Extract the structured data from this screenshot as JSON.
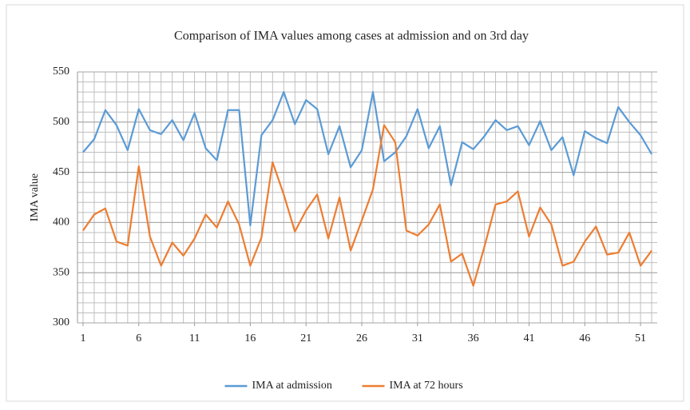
{
  "chart_data": {
    "type": "line",
    "title": "Comparison of IMA values among cases at admission and on 3rd day",
    "y_label": "IMA value",
    "x": [
      1,
      2,
      3,
      4,
      5,
      6,
      7,
      8,
      9,
      10,
      11,
      12,
      13,
      14,
      15,
      16,
      17,
      18,
      19,
      20,
      21,
      22,
      23,
      24,
      25,
      26,
      27,
      28,
      29,
      30,
      31,
      32,
      33,
      34,
      35,
      36,
      37,
      38,
      39,
      40,
      41,
      42,
      43,
      44,
      45,
      46,
      47,
      48,
      49,
      50,
      51,
      52
    ],
    "xlim": [
      0.5,
      52.5
    ],
    "xticks": [
      1,
      6,
      11,
      16,
      21,
      26,
      31,
      36,
      41,
      46,
      51
    ],
    "ylim": [
      300,
      550
    ],
    "yticks": [
      300,
      350,
      400,
      450,
      500,
      550
    ],
    "y_minor_step": 10,
    "grid": true,
    "legend": "bottom",
    "series": [
      {
        "name": "IMA at admission",
        "color": "#5b9bd5",
        "values": [
          470,
          483,
          512,
          497,
          472,
          513,
          492,
          488,
          502,
          482,
          509,
          474,
          462,
          512,
          512,
          397,
          487,
          502,
          530,
          498,
          522,
          513,
          468,
          496,
          455,
          472,
          530,
          461,
          470,
          486,
          513,
          474,
          496,
          437,
          480,
          473,
          486,
          502,
          492,
          496,
          477,
          501,
          472,
          485,
          447,
          491,
          484,
          479,
          515,
          500,
          487,
          468
        ]
      },
      {
        "name": "IMA at 72 hours",
        "color": "#ed7d31",
        "values": [
          392,
          408,
          414,
          381,
          377,
          456,
          386,
          357,
          380,
          367,
          384,
          408,
          395,
          421,
          398,
          357,
          385,
          460,
          428,
          391,
          412,
          428,
          384,
          425,
          372,
          402,
          433,
          497,
          480,
          392,
          387,
          398,
          418,
          361,
          369,
          337,
          376,
          418,
          421,
          431,
          386,
          415,
          398,
          357,
          361,
          381,
          396,
          368,
          370,
          390,
          357,
          372
        ]
      }
    ]
  }
}
